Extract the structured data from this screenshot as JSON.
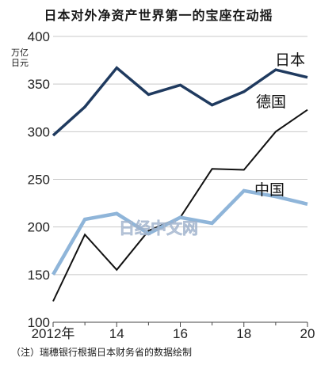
{
  "title": "日本对外净资产世界第一的宝座在动摇",
  "unit_label": [
    "万亿",
    "日元"
  ],
  "note": "（注）瑞穗银行根据日本财务省的数据绘制",
  "watermark": "日经中文网",
  "chart_data": {
    "type": "line",
    "title": "日本对外净资产世界第一的宝座在动摇",
    "ylim": [
      100,
      400
    ],
    "yticks": [
      100,
      150,
      200,
      250,
      300,
      350,
      400
    ],
    "xlim": [
      2012,
      2020
    ],
    "xticks": [
      {
        "value": 2012,
        "label": "2012年"
      },
      {
        "value": 2014,
        "label": "14"
      },
      {
        "value": 2016,
        "label": "16"
      },
      {
        "value": 2018,
        "label": "18"
      },
      {
        "value": 2020,
        "label": "20"
      }
    ],
    "x": [
      2012,
      2013,
      2014,
      2015,
      2016,
      2017,
      2018,
      2019,
      2020
    ],
    "series": [
      {
        "name": "日本",
        "color": "#1f3a5f",
        "values": [
          296,
          326,
          367,
          339,
          349,
          328,
          342,
          365,
          357
        ]
      },
      {
        "name": "德国",
        "color": "#111111",
        "values": [
          122,
          192,
          155,
          196,
          210,
          261,
          260,
          300,
          323
        ]
      },
      {
        "name": "中国",
        "color": "#8fb5d9",
        "values": [
          150,
          208,
          214,
          193,
          210,
          204,
          238,
          232,
          224
        ]
      }
    ]
  }
}
